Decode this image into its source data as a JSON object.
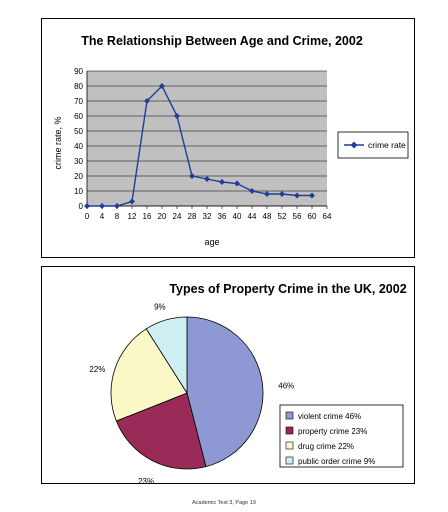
{
  "chart_data": [
    {
      "type": "line",
      "title": "The Relationship Between Age and Crime, 2002",
      "xlabel": "age",
      "ylabel": "crime rate, %",
      "x": [
        0,
        4,
        8,
        12,
        16,
        20,
        24,
        28,
        32,
        36,
        40,
        44,
        48,
        52,
        56,
        60
      ],
      "series": [
        {
          "name": "crime rate",
          "color": "#1f3f99",
          "values": [
            0,
            0,
            0,
            3,
            70,
            80,
            60,
            20,
            18,
            16,
            15,
            10,
            8,
            8,
            7,
            7
          ]
        }
      ],
      "xticks": [
        "0",
        "4",
        "8",
        "12",
        "16",
        "20",
        "24",
        "28",
        "32",
        "36",
        "40",
        "44",
        "48",
        "52",
        "56",
        "60",
        "64"
      ],
      "yticks": [
        "0",
        "10",
        "20",
        "30",
        "40",
        "50",
        "60",
        "70",
        "80",
        "90"
      ],
      "xlim": [
        0,
        64
      ],
      "ylim": [
        0,
        90
      ],
      "grid": true,
      "legend_position": "right",
      "plot_background": "#c0c0c0"
    },
    {
      "type": "pie",
      "title": "Types of Property Crime in the UK, 2002",
      "slices": [
        {
          "label": "violent crime 46%",
          "value": 46,
          "pct_label": "46%",
          "color": "#8e99d4"
        },
        {
          "label": "property crime 23%",
          "value": 23,
          "pct_label": "23%",
          "color": "#9a2a57"
        },
        {
          "label": "drug crime 22%",
          "value": 22,
          "pct_label": "22%",
          "color": "#fbf8c8"
        },
        {
          "label": "public order crime 9%",
          "value": 9,
          "pct_label": "9%",
          "color": "#cdeff2"
        }
      ],
      "legend_position": "bottom-right"
    }
  ],
  "footer": "Academic Test 3, Page 19"
}
